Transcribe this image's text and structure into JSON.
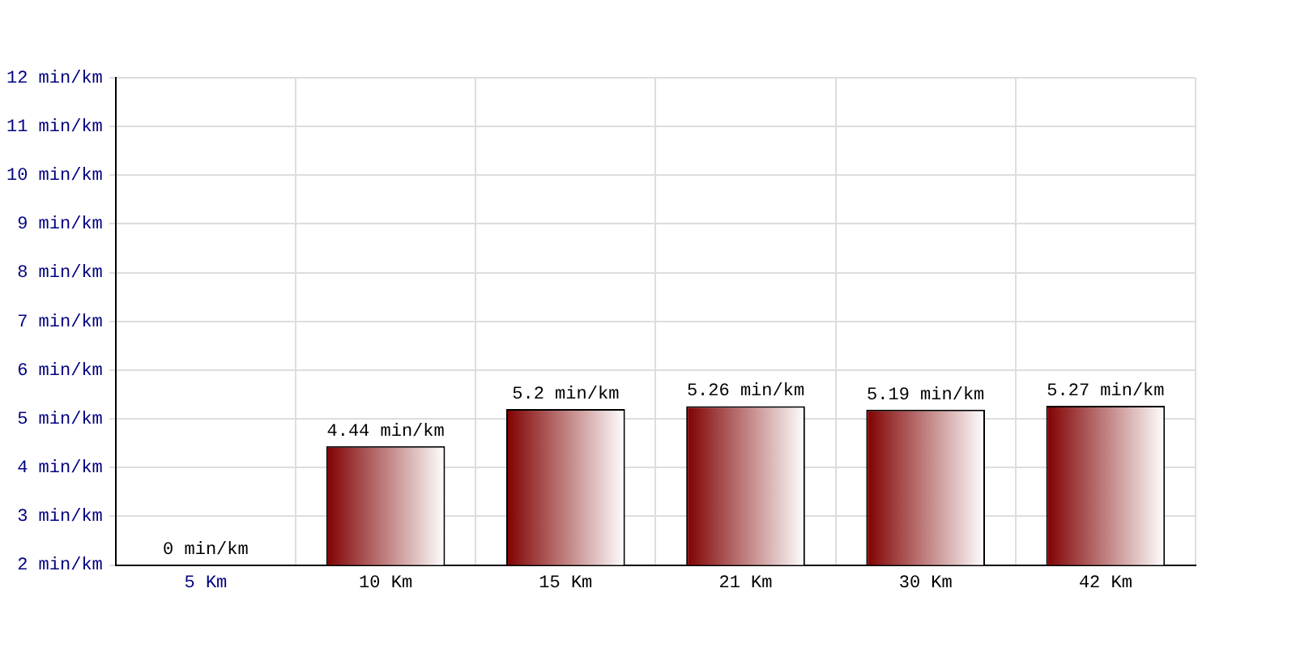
{
  "chart_data": {
    "type": "bar",
    "categories": [
      "5 Km",
      "10 Km",
      "15 Km",
      "21 Km",
      "30 Km",
      "42 Km"
    ],
    "values": [
      null,
      4.44,
      5.2,
      5.26,
      5.19,
      5.27
    ],
    "value_labels": [
      "0 min/km",
      "4.44 min/km",
      "5.2 min/km",
      "5.26 min/km",
      "5.19 min/km",
      "5.27 min/km"
    ],
    "color": "#800000",
    "ylim": [
      2,
      12
    ],
    "yticks": [
      {
        "value": 2,
        "label": "2 min/km"
      },
      {
        "value": 3,
        "label": "3 min/km"
      },
      {
        "value": 4,
        "label": "4 min/km"
      },
      {
        "value": 5,
        "label": "5 min/km"
      },
      {
        "value": 6,
        "label": "6 min/km"
      },
      {
        "value": 7,
        "label": "7 min/km"
      },
      {
        "value": 8,
        "label": "8 min/km"
      },
      {
        "value": 9,
        "label": "9 min/km"
      },
      {
        "value": 10,
        "label": "10 min/km"
      },
      {
        "value": 11,
        "label": "11 min/km"
      },
      {
        "value": 12,
        "label": "12 min/km"
      }
    ],
    "grid": true
  }
}
